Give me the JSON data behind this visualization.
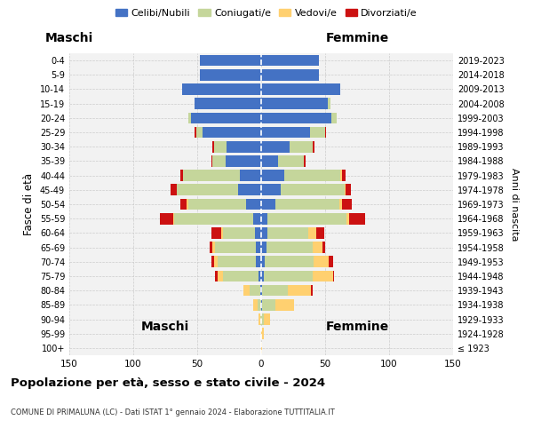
{
  "age_groups": [
    "100+",
    "95-99",
    "90-94",
    "85-89",
    "80-84",
    "75-79",
    "70-74",
    "65-69",
    "60-64",
    "55-59",
    "50-54",
    "45-49",
    "40-44",
    "35-39",
    "30-34",
    "25-29",
    "20-24",
    "15-19",
    "10-14",
    "5-9",
    "0-4"
  ],
  "birth_years": [
    "≤ 1923",
    "1924-1928",
    "1929-1933",
    "1934-1938",
    "1939-1943",
    "1944-1948",
    "1949-1953",
    "1954-1958",
    "1959-1963",
    "1964-1968",
    "1969-1973",
    "1974-1978",
    "1979-1983",
    "1984-1988",
    "1989-1993",
    "1994-1998",
    "1999-2003",
    "2004-2008",
    "2009-2013",
    "2014-2018",
    "2019-2023"
  ],
  "colors": {
    "celibi": "#4472C4",
    "coniugati": "#C5D69B",
    "vedovi": "#FFD070",
    "divorziati": "#CC1111"
  },
  "maschi": {
    "celibi": [
      0,
      0,
      0,
      0,
      1,
      2,
      4,
      4,
      5,
      6,
      12,
      18,
      17,
      28,
      27,
      46,
      55,
      52,
      62,
      48,
      48
    ],
    "coniugati": [
      0,
      0,
      1,
      3,
      8,
      28,
      30,
      32,
      25,
      62,
      45,
      48,
      44,
      10,
      10,
      5,
      2,
      0,
      0,
      0,
      0
    ],
    "vedovi": [
      0,
      0,
      1,
      3,
      5,
      4,
      3,
      2,
      1,
      1,
      1,
      0,
      0,
      0,
      0,
      0,
      0,
      0,
      0,
      0,
      0
    ],
    "divorziati": [
      0,
      0,
      0,
      0,
      0,
      2,
      2,
      2,
      8,
      10,
      5,
      5,
      2,
      1,
      1,
      1,
      0,
      0,
      0,
      0,
      0
    ]
  },
  "femmine": {
    "celibi": [
      0,
      0,
      0,
      1,
      1,
      2,
      3,
      4,
      5,
      5,
      11,
      15,
      18,
      13,
      22,
      38,
      55,
      52,
      62,
      45,
      45
    ],
    "coniugati": [
      0,
      0,
      2,
      10,
      20,
      38,
      38,
      36,
      32,
      62,
      50,
      50,
      44,
      20,
      18,
      12,
      4,
      2,
      0,
      0,
      0
    ],
    "vedovi": [
      1,
      2,
      5,
      15,
      18,
      16,
      12,
      8,
      6,
      2,
      2,
      1,
      1,
      0,
      0,
      0,
      0,
      0,
      0,
      0,
      0
    ],
    "divorziati": [
      0,
      0,
      0,
      0,
      1,
      1,
      3,
      2,
      6,
      12,
      8,
      4,
      3,
      2,
      2,
      1,
      0,
      0,
      0,
      0,
      0
    ]
  },
  "xlim": 150,
  "title": "Popolazione per età, sesso e stato civile - 2024",
  "subtitle": "COMUNE DI PRIMALUNA (LC) - Dati ISTAT 1° gennaio 2024 - Elaborazione TUTTITALIA.IT",
  "xlabel_left": "Maschi",
  "xlabel_right": "Femmine",
  "ylabel_left": "Fasce di età",
  "ylabel_right": "Anni di nascita",
  "legend_labels": [
    "Celibi/Nubili",
    "Coniugati/e",
    "Vedovi/e",
    "Divorziati/e"
  ],
  "bg_color": "#FFFFFF",
  "plot_bg": "#F2F2F2",
  "grid_color": "#CCCCCC"
}
